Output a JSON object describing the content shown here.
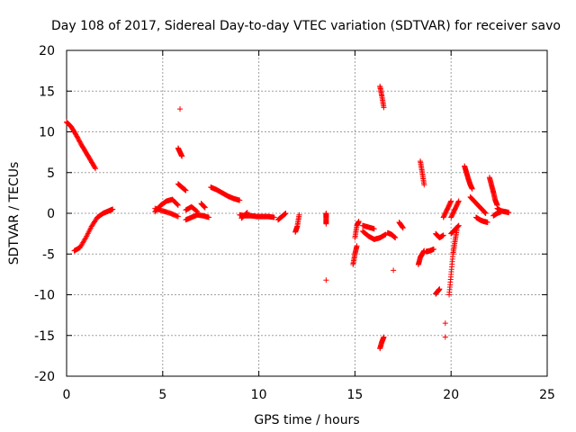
{
  "chart_data": {
    "type": "scatter",
    "title": "Day 108 of 2017, Sidereal Day-to-day VTEC variation (SDTVAR) for receiver savo",
    "xlabel": "GPS time / hours",
    "ylabel": "SDTVAR / TECUs",
    "xlim": [
      0,
      25
    ],
    "ylim": [
      -20,
      20
    ],
    "x_ticks": [
      0,
      5,
      10,
      15,
      20,
      25
    ],
    "y_ticks": [
      -20,
      -15,
      -10,
      -5,
      0,
      5,
      10,
      15,
      20
    ],
    "x_tick_labels": [
      "0",
      "5",
      "10",
      "15",
      "20",
      "25"
    ],
    "y_tick_labels": [
      "-20",
      "-15",
      "-10",
      "-5",
      "0",
      "5",
      "10",
      "15",
      "20"
    ],
    "grid": true,
    "marker": "+",
    "color": "#ff0000",
    "segments": [
      {
        "x": [
          0.0,
          0.25,
          0.5,
          0.75,
          1.0,
          1.25,
          1.5
        ],
        "y": [
          11.2,
          10.6,
          9.6,
          8.5,
          7.5,
          6.5,
          5.5
        ]
      },
      {
        "x": [
          0.4,
          0.7,
          1.0,
          1.3,
          1.6,
          1.9,
          2.2,
          2.4
        ],
        "y": [
          -4.6,
          -4.2,
          -3.0,
          -1.6,
          -0.5,
          0.0,
          0.3,
          0.5
        ]
      },
      {
        "x": [
          4.6,
          4.9,
          5.2,
          5.5,
          5.8
        ],
        "y": [
          0.2,
          1.0,
          1.5,
          1.7,
          1.0
        ]
      },
      {
        "x": [
          4.6,
          5.0,
          5.4,
          5.8
        ],
        "y": [
          0.6,
          0.3,
          0.0,
          -0.4
        ]
      },
      {
        "x": [
          5.8,
          5.9,
          6.0
        ],
        "y": [
          8.0,
          7.5,
          7.0
        ]
      },
      {
        "x": [
          5.8,
          6.0,
          6.2
        ],
        "y": [
          3.6,
          3.2,
          2.8
        ]
      },
      {
        "x": [
          6.2,
          6.5,
          6.8,
          7.1,
          7.4
        ],
        "y": [
          -0.8,
          -0.5,
          -0.2,
          -0.3,
          -0.5
        ]
      },
      {
        "x": [
          6.2,
          6.5,
          6.8
        ],
        "y": [
          0.4,
          0.8,
          0.2
        ]
      },
      {
        "x": [
          5.9
        ],
        "y": [
          12.8
        ]
      },
      {
        "x": [
          7.0,
          7.2
        ],
        "y": [
          1.2,
          0.7
        ]
      },
      {
        "x": [
          7.5,
          7.8,
          8.1,
          8.4,
          8.7,
          9.0
        ],
        "y": [
          3.2,
          2.9,
          2.5,
          2.1,
          1.8,
          1.6
        ]
      },
      {
        "x": [
          9.0,
          9.3,
          9.6,
          9.9,
          10.2,
          10.5,
          10.8
        ],
        "y": [
          -0.2,
          -0.3,
          -0.3,
          -0.4,
          -0.4,
          -0.4,
          -0.5
        ]
      },
      {
        "x": [
          9.1,
          9.4
        ],
        "y": [
          -0.6,
          0.1
        ]
      },
      {
        "x": [
          11.0,
          11.2,
          11.4
        ],
        "y": [
          -0.8,
          -0.4,
          0.0
        ]
      },
      {
        "x": [
          11.9,
          12.0,
          12.1
        ],
        "y": [
          -2.3,
          -1.6,
          -0.2
        ]
      },
      {
        "x": [
          13.5,
          13.5,
          13.5
        ],
        "y": [
          -1.3,
          -0.5,
          0.0
        ]
      },
      {
        "x": [
          13.5
        ],
        "y": [
          -8.2
        ]
      },
      {
        "x": [
          14.9,
          15.0,
          15.1
        ],
        "y": [
          -6.3,
          -5.0,
          -4.0
        ]
      },
      {
        "x": [
          15.0,
          15.1,
          15.2
        ],
        "y": [
          -3.0,
          -1.5,
          -1.0
        ]
      },
      {
        "x": [
          15.4,
          15.7,
          16.0,
          16.3,
          16.6
        ],
        "y": [
          -2.2,
          -2.8,
          -3.2,
          -3.0,
          -2.6
        ]
      },
      {
        "x": [
          15.4,
          15.7,
          16.0
        ],
        "y": [
          -1.5,
          -1.7,
          -1.9
        ]
      },
      {
        "x": [
          16.3,
          16.4,
          16.5
        ],
        "y": [
          15.6,
          14.4,
          13.0
        ]
      },
      {
        "x": [
          16.3,
          16.4,
          16.5
        ],
        "y": [
          -16.6,
          -15.8,
          -15.2
        ]
      },
      {
        "x": [
          16.7,
          16.9,
          17.1
        ],
        "y": [
          -2.4,
          -2.6,
          -3.0
        ]
      },
      {
        "x": [
          17.0
        ],
        "y": [
          -7.0
        ]
      },
      {
        "x": [
          17.3,
          17.5
        ],
        "y": [
          -1.1,
          -1.8
        ]
      },
      {
        "x": [
          18.3,
          18.4,
          18.5,
          18.6
        ],
        "y": [
          -6.3,
          -5.4,
          -5.0,
          -4.6
        ]
      },
      {
        "x": [
          18.4,
          18.5,
          18.6
        ],
        "y": [
          6.4,
          5.0,
          3.5
        ]
      },
      {
        "x": [
          18.7,
          18.9,
          19.1
        ],
        "y": [
          -4.7,
          -4.6,
          -4.4
        ]
      },
      {
        "x": [
          19.2,
          19.3,
          19.4
        ],
        "y": [
          -9.9,
          -9.6,
          -9.3
        ]
      },
      {
        "x": [
          19.2,
          19.4,
          19.6
        ],
        "y": [
          -2.5,
          -3.0,
          -2.7
        ]
      },
      {
        "x": [
          19.7
        ],
        "y": [
          -13.5
        ]
      },
      {
        "x": [
          19.7
        ],
        "y": [
          -15.2
        ]
      },
      {
        "x": [
          19.6,
          19.8,
          20.0
        ],
        "y": [
          -0.5,
          0.5,
          1.5
        ]
      },
      {
        "x": [
          19.9,
          20.0,
          20.1,
          20.2,
          20.3
        ],
        "y": [
          -10.0,
          -7.5,
          -5.0,
          -3.5,
          -2.0
        ]
      },
      {
        "x": [
          20.0,
          20.2,
          20.4
        ],
        "y": [
          -0.5,
          0.5,
          1.5
        ]
      },
      {
        "x": [
          20.0,
          20.2,
          20.4
        ],
        "y": [
          -2.5,
          -2.0,
          -1.5
        ]
      },
      {
        "x": [
          20.7,
          20.8,
          20.9,
          21.0,
          21.1
        ],
        "y": [
          5.8,
          5.0,
          4.2,
          3.5,
          3.0
        ]
      },
      {
        "x": [
          21.0,
          21.2,
          21.4,
          21.6,
          21.8
        ],
        "y": [
          2.0,
          1.5,
          1.0,
          0.5,
          0.0
        ]
      },
      {
        "x": [
          21.3,
          21.5,
          21.7,
          21.9
        ],
        "y": [
          -0.5,
          -0.8,
          -1.0,
          -1.1
        ]
      },
      {
        "x": [
          22.0,
          22.1,
          22.2,
          22.3,
          22.4
        ],
        "y": [
          4.4,
          3.5,
          2.6,
          1.6,
          1.0
        ]
      },
      {
        "x": [
          22.4,
          22.6,
          22.8,
          23.0
        ],
        "y": [
          0.6,
          0.3,
          0.2,
          0.1
        ]
      },
      {
        "x": [
          22.2,
          22.4,
          22.6
        ],
        "y": [
          -0.3,
          0.0,
          0.2
        ]
      }
    ]
  }
}
